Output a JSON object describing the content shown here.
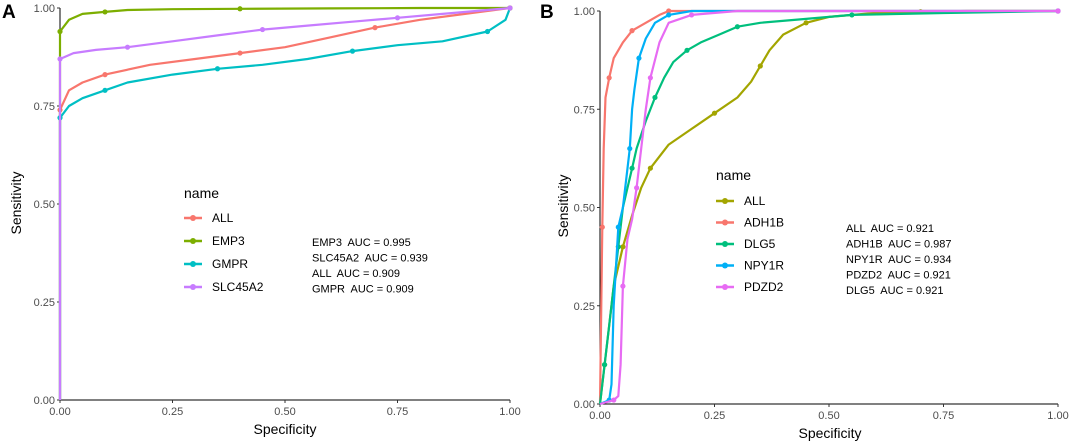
{
  "chart_data": [
    {
      "panel": "A",
      "type": "line",
      "title": "",
      "xlabel": "Specificity",
      "ylabel": "Sensitivity",
      "xlim": [
        0,
        1
      ],
      "ylim": [
        0,
        1
      ],
      "xticks": [
        "0.00",
        "0.25",
        "0.50",
        "0.75",
        "1.00"
      ],
      "yticks": [
        "0.00",
        "0.25",
        "0.50",
        "0.75",
        "1.00"
      ],
      "grid": false,
      "legend_title": "name",
      "series": [
        {
          "name": "ALL",
          "color": "#F8766D",
          "x": [
            0,
            0,
            0.02,
            0.05,
            0.1,
            0.2,
            0.3,
            0.4,
            0.5,
            0.6,
            0.7,
            0.8,
            0.9,
            1.0
          ],
          "y": [
            0,
            0.74,
            0.79,
            0.81,
            0.83,
            0.855,
            0.87,
            0.885,
            0.9,
            0.925,
            0.95,
            0.97,
            0.985,
            1.0
          ]
        },
        {
          "name": "EMP3",
          "color": "#7CAE00",
          "x": [
            0,
            0,
            0.02,
            0.05,
            0.1,
            0.15,
            0.25,
            0.4,
            0.6,
            0.8,
            1.0
          ],
          "y": [
            0,
            0.94,
            0.97,
            0.985,
            0.99,
            0.995,
            0.997,
            0.998,
            0.999,
            1.0,
            1.0
          ]
        },
        {
          "name": "GMPR",
          "color": "#00BFC4",
          "x": [
            0,
            0,
            0.02,
            0.05,
            0.1,
            0.15,
            0.25,
            0.35,
            0.45,
            0.55,
            0.65,
            0.75,
            0.85,
            0.95,
            0.99,
            1.0
          ],
          "y": [
            0,
            0.72,
            0.75,
            0.77,
            0.79,
            0.81,
            0.83,
            0.845,
            0.855,
            0.87,
            0.89,
            0.905,
            0.915,
            0.94,
            0.97,
            1.0
          ]
        },
        {
          "name": "SLC45A2",
          "color": "#C77CFF",
          "x": [
            0,
            0,
            0.03,
            0.08,
            0.15,
            0.25,
            0.35,
            0.45,
            0.55,
            0.65,
            0.75,
            0.85,
            0.95,
            1.0
          ],
          "y": [
            0,
            0.87,
            0.885,
            0.893,
            0.9,
            0.915,
            0.93,
            0.945,
            0.955,
            0.965,
            0.975,
            0.985,
            0.995,
            1.0
          ]
        }
      ],
      "annotations": [
        "EMP3  AUC = 0.995",
        "SLC45A2  AUC = 0.939",
        "ALL  AUC = 0.909",
        "GMPR  AUC = 0.909"
      ]
    },
    {
      "panel": "B",
      "type": "line",
      "title": "",
      "xlabel": "Specificity",
      "ylabel": "Sensitivity",
      "xlim": [
        0,
        1
      ],
      "ylim": [
        0,
        1
      ],
      "xticks": [
        "0.00",
        "0.25",
        "0.50",
        "0.75",
        "1.00"
      ],
      "yticks": [
        "0.00",
        "0.25",
        "0.50",
        "0.75",
        "1.00"
      ],
      "grid": false,
      "legend_title": "name",
      "series": [
        {
          "name": "ALL",
          "color": "#A3A500",
          "x": [
            0,
            0.01,
            0.02,
            0.03,
            0.05,
            0.07,
            0.09,
            0.11,
            0.15,
            0.2,
            0.25,
            0.3,
            0.33,
            0.35,
            0.37,
            0.4,
            0.45,
            0.5,
            0.6,
            0.7,
            0.8,
            1.0
          ],
          "y": [
            0,
            0.1,
            0.2,
            0.3,
            0.4,
            0.48,
            0.55,
            0.6,
            0.66,
            0.7,
            0.74,
            0.78,
            0.82,
            0.86,
            0.9,
            0.94,
            0.97,
            0.985,
            0.995,
            0.998,
            1.0,
            1.0
          ]
        },
        {
          "name": "ADH1B",
          "color": "#F8766D",
          "x": [
            0,
            0.005,
            0.008,
            0.012,
            0.02,
            0.03,
            0.05,
            0.07,
            0.1,
            0.13,
            0.15,
            0.2,
            0.3,
            1.0
          ],
          "y": [
            0,
            0.45,
            0.65,
            0.78,
            0.83,
            0.88,
            0.92,
            0.95,
            0.97,
            0.99,
            1.0,
            1.0,
            1.0,
            1.0
          ]
        },
        {
          "name": "DLG5",
          "color": "#00BF7D",
          "x": [
            0,
            0.01,
            0.02,
            0.03,
            0.04,
            0.05,
            0.06,
            0.07,
            0.08,
            0.1,
            0.12,
            0.14,
            0.16,
            0.19,
            0.22,
            0.26,
            0.3,
            0.35,
            0.45,
            0.55,
            0.75,
            1.0
          ],
          "y": [
            0,
            0.1,
            0.2,
            0.3,
            0.4,
            0.5,
            0.55,
            0.6,
            0.65,
            0.72,
            0.78,
            0.83,
            0.87,
            0.9,
            0.92,
            0.94,
            0.96,
            0.97,
            0.98,
            0.99,
            0.995,
            1.0
          ]
        },
        {
          "name": "NPY1R",
          "color": "#00B0F6",
          "x": [
            0,
            0.02,
            0.025,
            0.03,
            0.04,
            0.05,
            0.06,
            0.065,
            0.07,
            0.075,
            0.085,
            0.1,
            0.12,
            0.15,
            0.2,
            0.3,
            1.0
          ],
          "y": [
            0,
            0.01,
            0.05,
            0.25,
            0.45,
            0.5,
            0.6,
            0.65,
            0.75,
            0.8,
            0.88,
            0.93,
            0.97,
            0.99,
            1.0,
            1.0,
            1.0
          ]
        },
        {
          "name": "PDZD2",
          "color": "#E76BF3",
          "x": [
            0,
            0.03,
            0.04,
            0.045,
            0.05,
            0.06,
            0.07,
            0.08,
            0.09,
            0.1,
            0.11,
            0.13,
            0.15,
            0.2,
            0.3,
            0.5,
            1.0
          ],
          "y": [
            0,
            0.01,
            0.02,
            0.1,
            0.3,
            0.42,
            0.47,
            0.55,
            0.65,
            0.75,
            0.83,
            0.92,
            0.97,
            0.99,
            1.0,
            1.0,
            1.0
          ]
        }
      ],
      "annotations": [
        "ALL  AUC = 0.921",
        "ADH1B  AUC = 0.987",
        "NPY1R  AUC = 0.934",
        "PDZD2  AUC = 0.921",
        "DLG5  AUC = 0.921"
      ]
    }
  ]
}
